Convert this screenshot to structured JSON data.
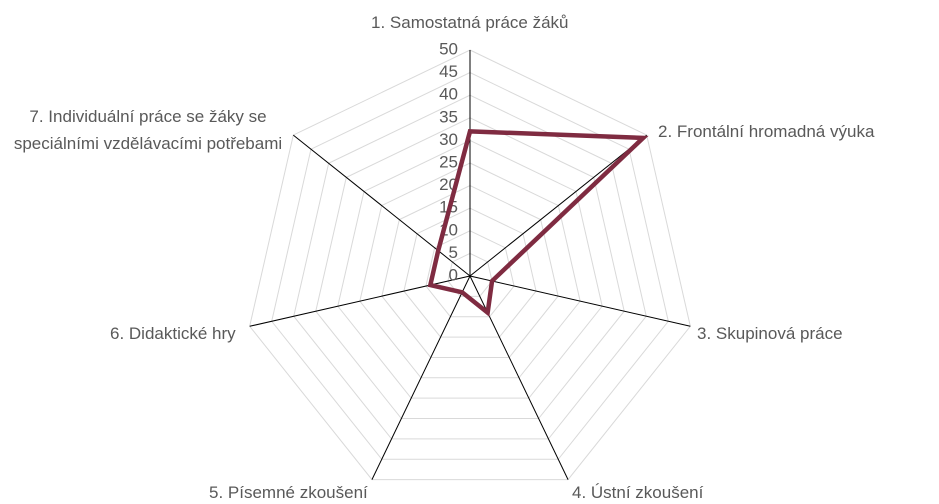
{
  "chart_data": {
    "type": "radar",
    "categories": [
      "1. Samostatná práce žáků",
      "2. Frontální hromadná výuka",
      "3. Skupinová práce",
      "4. Ústní zkoušení",
      "5. Písemné zkoušení",
      "6. Didaktické hry",
      "7. Individuální práce se žáky se speciálními vzdělávacími potřebami"
    ],
    "series": [
      {
        "color": "#7f2b41",
        "values": [
          32,
          49,
          5,
          9,
          4,
          9,
          9
        ]
      }
    ],
    "ylim": [
      0,
      50
    ],
    "yticks": [
      0,
      5,
      10,
      15,
      20,
      25,
      30,
      35,
      40,
      45,
      50
    ],
    "grid": true
  }
}
